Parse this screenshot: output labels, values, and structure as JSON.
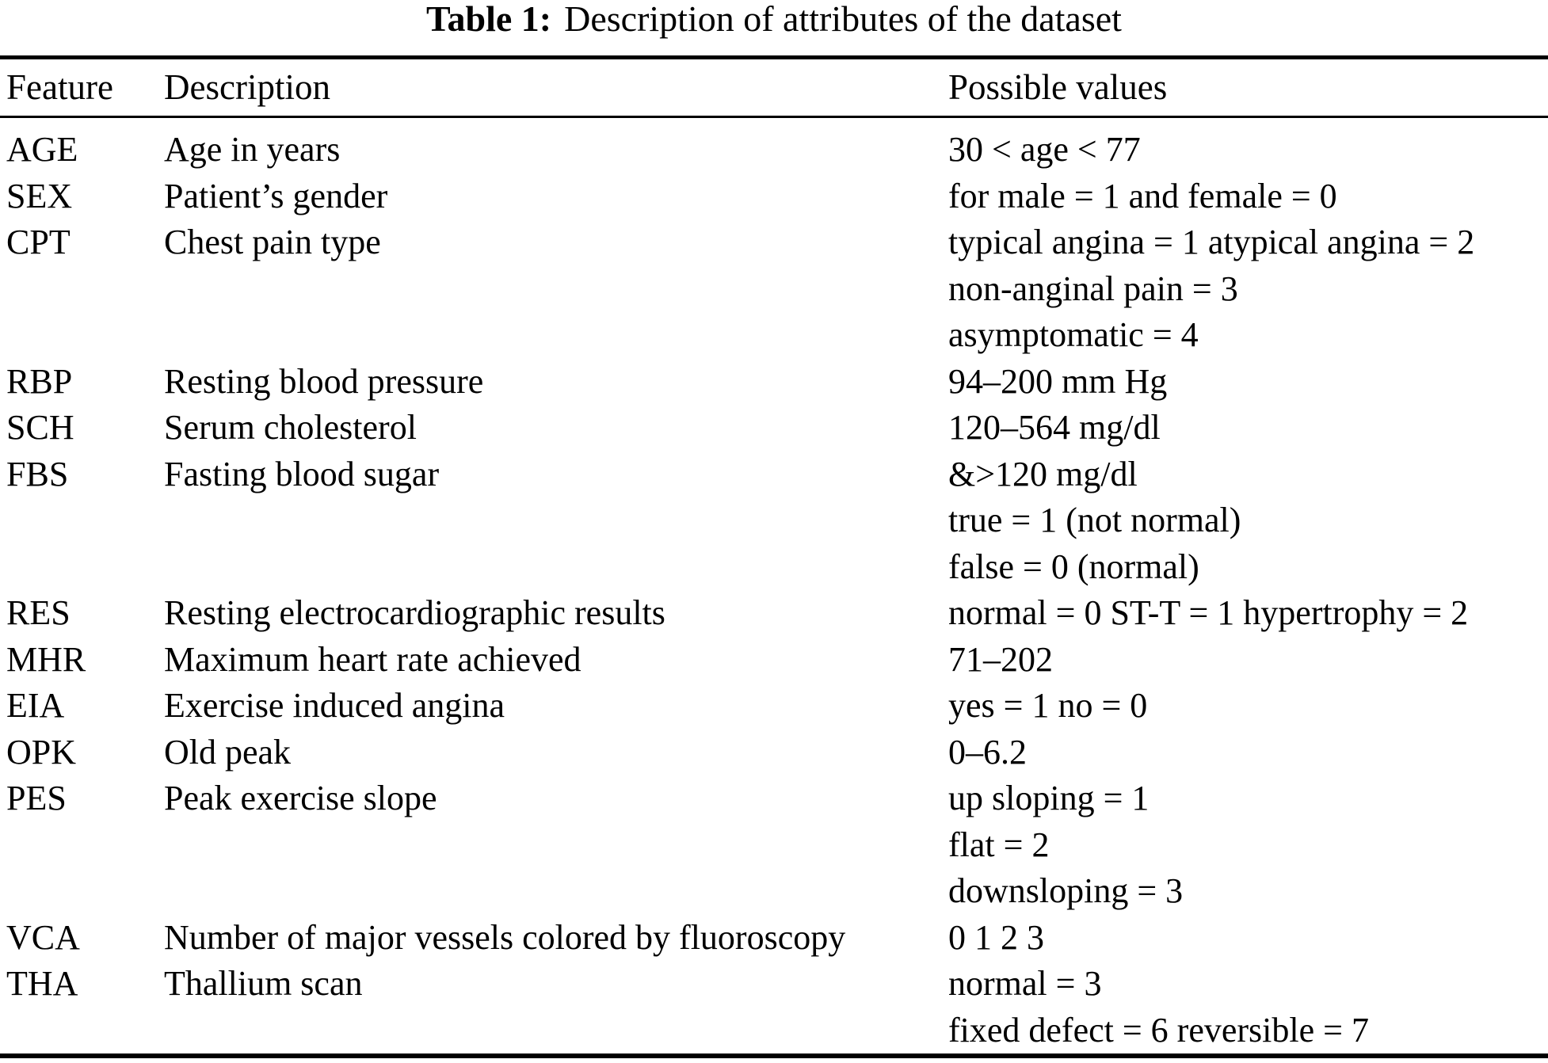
{
  "colors": {
    "text": "#000000",
    "background": "#ffffff"
  },
  "caption": {
    "label": "Table 1:",
    "text": "Description of attributes of the dataset"
  },
  "table": {
    "columns": [
      "Feature",
      "Description",
      "Possible values"
    ],
    "rows": [
      {
        "feature": "AGE",
        "description": "Age in years",
        "values": [
          "30 < age < 77"
        ]
      },
      {
        "feature": "SEX",
        "description": "Patient’s gender",
        "values": [
          "for male = 1 and female = 0"
        ]
      },
      {
        "feature": "CPT",
        "description": "Chest pain type",
        "values": [
          "typical angina = 1 atypical angina = 2",
          "non-anginal pain = 3",
          "asymptomatic = 4"
        ]
      },
      {
        "feature": "RBP",
        "description": "Resting blood pressure",
        "values": [
          "94–200 mm Hg"
        ]
      },
      {
        "feature": "SCH",
        "description": "Serum cholesterol",
        "values": [
          "120–564 mg/dl"
        ]
      },
      {
        "feature": "FBS",
        "description": "Fasting blood sugar",
        "values": [
          "&>120 mg/dl",
          "true = 1 (not normal)",
          "false = 0 (normal)"
        ]
      },
      {
        "feature": "RES",
        "description": "Resting electrocardiographic results",
        "values": [
          "normal = 0 ST-T = 1 hypertrophy = 2"
        ]
      },
      {
        "feature": "MHR",
        "description": "Maximum heart rate achieved",
        "values": [
          "71–202"
        ]
      },
      {
        "feature": "EIA",
        "description": "Exercise induced angina",
        "values": [
          "yes = 1 no = 0"
        ]
      },
      {
        "feature": "OPK",
        "description": "Old peak",
        "values": [
          "0–6.2"
        ]
      },
      {
        "feature": "PES",
        "description": "Peak exercise slope",
        "values": [
          "up sloping = 1",
          "flat = 2",
          "downsloping = 3"
        ]
      },
      {
        "feature": "VCA",
        "description": "Number of major vessels colored by fluoroscopy",
        "values": [
          "0 1 2 3"
        ]
      },
      {
        "feature": "THA",
        "description": "Thallium scan",
        "values": [
          "normal = 3",
          "fixed defect = 6 reversible = 7"
        ]
      }
    ]
  }
}
